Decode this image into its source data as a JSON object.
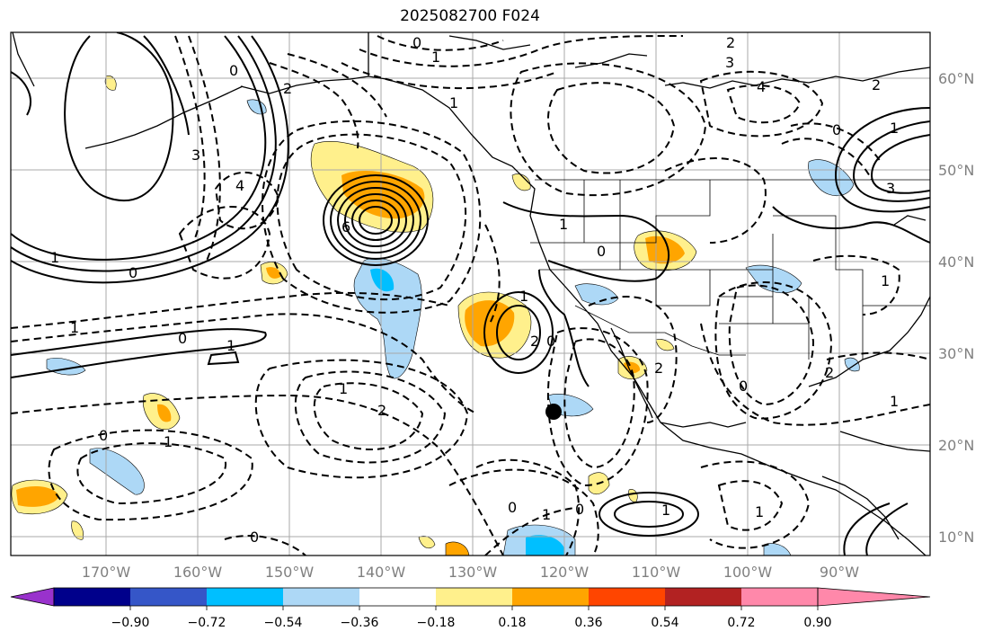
{
  "title": "2025082700 F024",
  "axes": {
    "lon_labels": [
      "170°W",
      "160°W",
      "150°W",
      "140°W",
      "130°W",
      "120°W",
      "110°W",
      "100°W",
      "90°W"
    ],
    "lat_labels": [
      "60°N",
      "50°N",
      "40°N",
      "30°N",
      "20°N",
      "10°N"
    ]
  },
  "colorbar": {
    "tick_labels": [
      "−0.90",
      "−0.72",
      "−0.54",
      "−0.36",
      "−0.18",
      "0.18",
      "0.36",
      "0.54",
      "0.72",
      "0.90"
    ],
    "colors": [
      "#9932cc",
      "#00008b",
      "#3556c8",
      "#00bfff",
      "#add8f6",
      "#ffffff",
      "#fff08c",
      "#ffa500",
      "#ff4500",
      "#b22222",
      "#ff88aa"
    ]
  },
  "contour_labels": [
    "0",
    "1",
    "2",
    "3",
    "0",
    "2",
    "1",
    "3",
    "4",
    "4",
    "2",
    "0",
    "1",
    "6",
    "1",
    "1",
    "1",
    "1",
    "0",
    "0",
    "2",
    "0",
    "2",
    "1",
    "1",
    "2",
    "1",
    "0",
    "1",
    "0",
    "1",
    "0",
    "1",
    "0",
    "1",
    "0",
    "0",
    "2",
    "1",
    "3"
  ],
  "markers": [
    {
      "name": "black-dot"
    }
  ]
}
